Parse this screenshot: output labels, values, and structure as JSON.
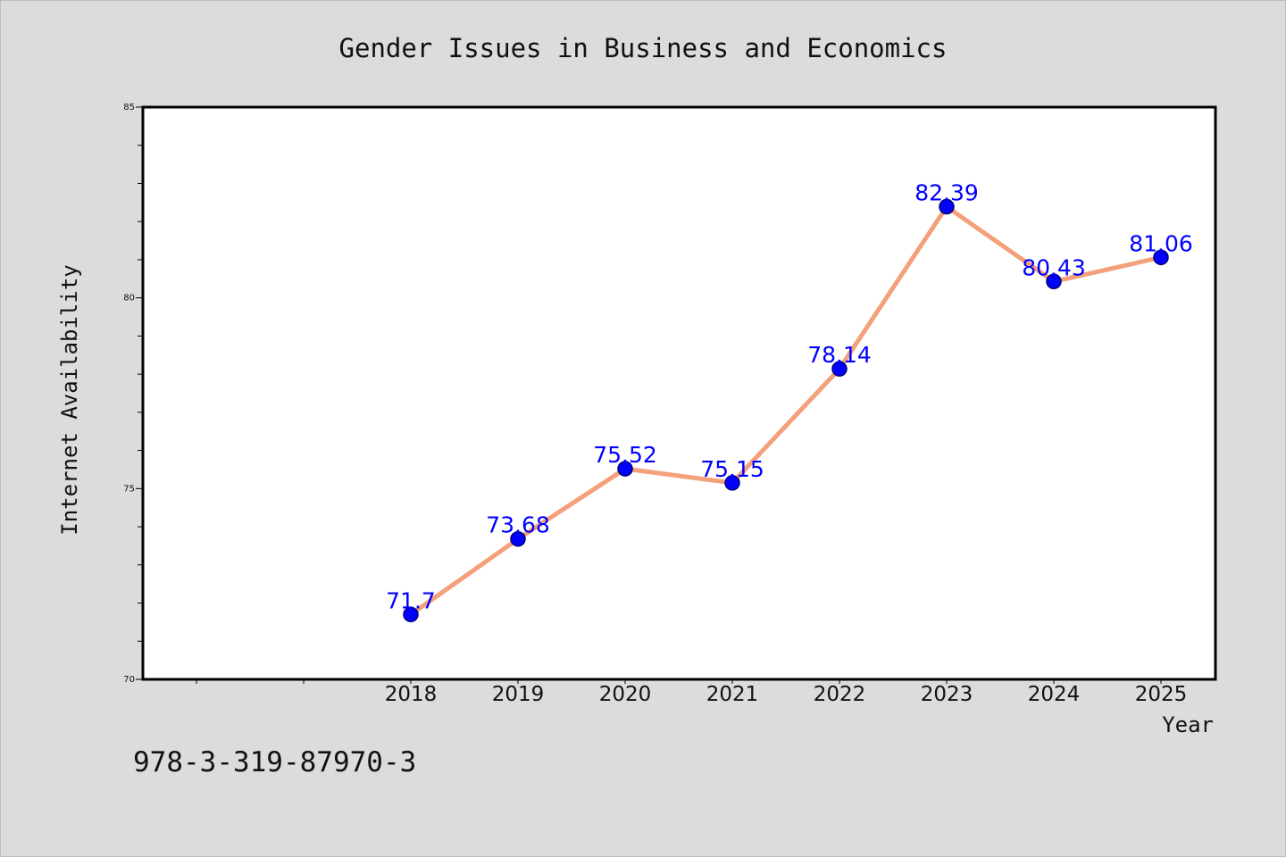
{
  "chart_data": {
    "type": "line",
    "title": "Gender Issues in Business and Economics",
    "xlabel": "Year",
    "ylabel": "Internet Availability",
    "x": [
      "2018",
      "2019",
      "2020",
      "2021",
      "2022",
      "2023",
      "2024",
      "2025"
    ],
    "series": [
      {
        "values": [
          71.7,
          73.68,
          75.52,
          75.15,
          78.14,
          82.39,
          80.43,
          81.06
        ],
        "labels": [
          "71.7",
          "73.68",
          "75.52",
          "75.15",
          "78.14",
          "82.39",
          "80.43",
          "81.06"
        ]
      }
    ],
    "ylim": [
      70,
      85
    ],
    "y_major_ticks": [
      70,
      75,
      80,
      85
    ],
    "y_major_tick_labels": [
      "70",
      "75",
      "80",
      "85"
    ],
    "y_minor_step": 1,
    "grid": false,
    "legend": "none",
    "colors": {
      "line": "#f4a07a",
      "marker_fill": "#0000ff",
      "marker_edge": "#00007a",
      "data_label": "#0000ff",
      "plot_bg": "#ffffff",
      "figure_bg": "#dcdcdc",
      "frame": "#000000"
    }
  },
  "footer": {
    "isbn": "978-3-319-87970-3"
  }
}
